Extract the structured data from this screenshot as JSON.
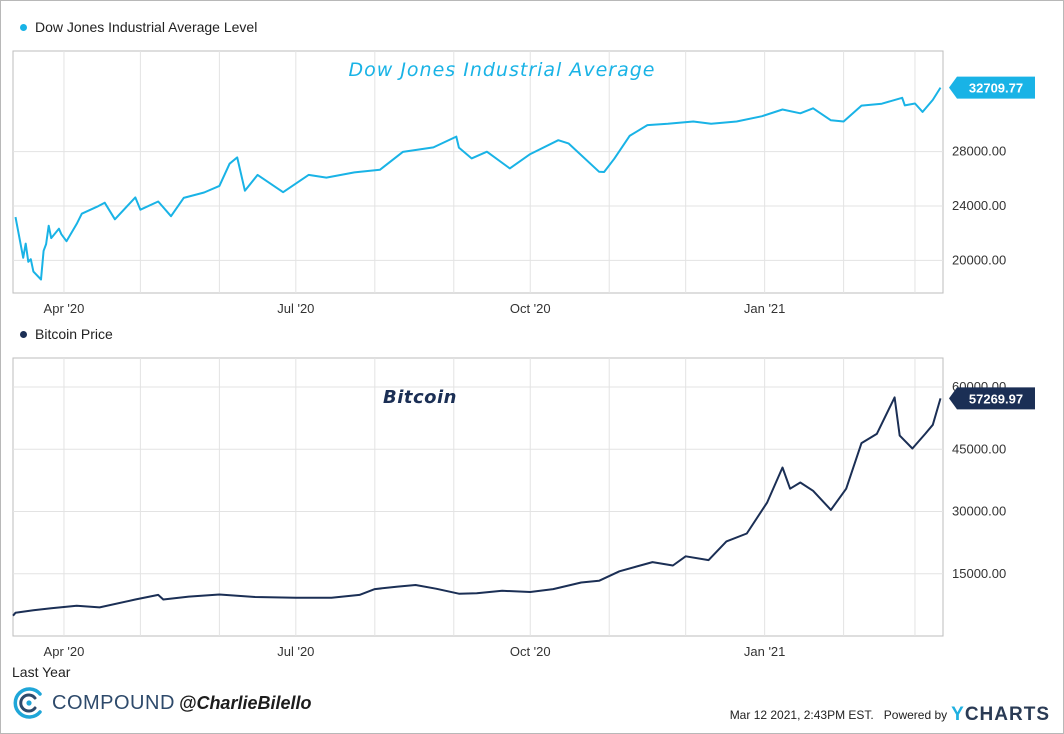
{
  "colors": {
    "dow": "#19b3e6",
    "btc": "#1b2f55",
    "grid": "#e3e3e3",
    "axis": "#bdbdbd"
  },
  "chart_data": [
    {
      "type": "line",
      "legend": "Dow Jones Industrial Average Level",
      "title": "Dow Jones Industrial Average",
      "x_ticks": [
        "Apr '20",
        "Jul '20",
        "Oct '20",
        "Jan '21"
      ],
      "y_ticks": [
        "20000.00",
        "24000.00",
        "28000.00"
      ],
      "ylim": [
        17600,
        35400
      ],
      "last_value_label": "32709.77",
      "series": [
        {
          "x": [
            "2020-03-13",
            "2020-03-16",
            "2020-03-17",
            "2020-03-18",
            "2020-03-19",
            "2020-03-20",
            "2020-03-23",
            "2020-03-24",
            "2020-03-25",
            "2020-03-26",
            "2020-03-27",
            "2020-03-30",
            "2020-03-31",
            "2020-04-02",
            "2020-04-06",
            "2020-04-08",
            "2020-04-14",
            "2020-04-17",
            "2020-04-21",
            "2020-04-29",
            "2020-05-01",
            "2020-05-08",
            "2020-05-13",
            "2020-05-18",
            "2020-05-26",
            "2020-06-01",
            "2020-06-05",
            "2020-06-08",
            "2020-06-11",
            "2020-06-16",
            "2020-06-26",
            "2020-07-06",
            "2020-07-13",
            "2020-07-24",
            "2020-08-03",
            "2020-08-12",
            "2020-08-24",
            "2020-09-02",
            "2020-09-03",
            "2020-09-08",
            "2020-09-14",
            "2020-09-23",
            "2020-10-01",
            "2020-10-12",
            "2020-10-16",
            "2020-10-28",
            "2020-10-30",
            "2020-11-03",
            "2020-11-09",
            "2020-11-16",
            "2020-11-24",
            "2020-12-04",
            "2020-12-11",
            "2020-12-21",
            "2020-12-31",
            "2021-01-08",
            "2021-01-15",
            "2021-01-20",
            "2021-01-27",
            "2021-02-01",
            "2021-02-08",
            "2021-02-16",
            "2021-02-24",
            "2021-02-25",
            "2021-03-01",
            "2021-03-04",
            "2021-03-08",
            "2021-03-11"
          ],
          "y": [
            23186,
            20189,
            21237,
            19898,
            20087,
            19174,
            18592,
            20704,
            21200,
            22552,
            21637,
            22327,
            21917,
            21413,
            22680,
            23434,
            23950,
            24242,
            23019,
            24633,
            23724,
            24331,
            23248,
            24597,
            24995,
            25475,
            27111,
            27572,
            25128,
            26290,
            25016,
            26287,
            26086,
            26470,
            26664,
            27977,
            28308,
            29101,
            28292,
            27500,
            27993,
            26763,
            27817,
            28837,
            28606,
            26520,
            26502,
            27480,
            29157,
            29950,
            30046,
            30218,
            30046,
            30216,
            30606,
            31097,
            30814,
            31188,
            30303,
            30212,
            31386,
            31522,
            31961,
            31402,
            31535,
            30924,
            31802,
            32709
          ]
        }
      ]
    },
    {
      "type": "line",
      "legend": "Bitcoin Price",
      "title": "Bitcoin",
      "x_ticks": [
        "Apr '20",
        "Jul '20",
        "Oct '20",
        "Jan '21"
      ],
      "y_ticks": [
        "15000.00",
        "30000.00",
        "45000.00",
        "60000.00"
      ],
      "ylim": [
        0,
        67000
      ],
      "last_value_label": "57269.97",
      "series": [
        {
          "x": [
            "2020-03-12",
            "2020-03-13",
            "2020-03-20",
            "2020-03-27",
            "2020-04-06",
            "2020-04-15",
            "2020-04-29",
            "2020-05-08",
            "2020-05-10",
            "2020-05-20",
            "2020-06-01",
            "2020-06-15",
            "2020-07-01",
            "2020-07-15",
            "2020-07-26",
            "2020-08-01",
            "2020-08-10",
            "2020-08-17",
            "2020-08-25",
            "2020-09-03",
            "2020-09-10",
            "2020-09-20",
            "2020-10-01",
            "2020-10-10",
            "2020-10-21",
            "2020-10-28",
            "2020-11-05",
            "2020-11-18",
            "2020-11-26",
            "2020-12-01",
            "2020-12-10",
            "2020-12-17",
            "2020-12-25",
            "2021-01-02",
            "2021-01-08",
            "2021-01-11",
            "2021-01-15",
            "2021-01-20",
            "2021-01-27",
            "2021-02-02",
            "2021-02-08",
            "2021-02-14",
            "2021-02-21",
            "2021-02-23",
            "2021-02-28",
            "2021-03-05",
            "2021-03-08",
            "2021-03-11"
          ],
          "y": [
            4900,
            5600,
            6200,
            6700,
            7300,
            6900,
            8800,
            9900,
            8800,
            9500,
            10000,
            9400,
            9200,
            9200,
            9900,
            11300,
            11900,
            12300,
            11400,
            10200,
            10300,
            10900,
            10600,
            11300,
            12900,
            13300,
            15600,
            17800,
            17000,
            19200,
            18300,
            22800,
            24700,
            32200,
            40600,
            35500,
            37000,
            35000,
            30400,
            35500,
            46500,
            48700,
            57500,
            48300,
            45200,
            48700,
            50900,
            57270
          ]
        }
      ]
    }
  ],
  "footer": {
    "range_label": "Last Year",
    "brand_name": "COMPOUND",
    "brand_handle": "@CharlieBilello",
    "timestamp": "Mar 12 2021, 2:43PM EST.",
    "powered_by": "Powered by",
    "provider_y": "Y",
    "provider_rest": "CHARTS"
  }
}
